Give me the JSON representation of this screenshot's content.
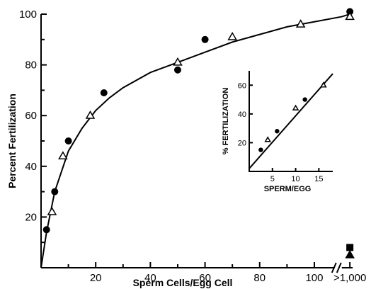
{
  "chart_data": [
    {
      "type": "scatter",
      "title": "",
      "xlabel": "Sperm Cells/Egg Cell",
      "ylabel": "Percent Fertilization",
      "x_ticks": [
        "20",
        "40",
        "60",
        "80",
        "100",
        ">1,000"
      ],
      "y_ticks": [
        "20",
        "40",
        "60",
        "80",
        "100"
      ],
      "xlim": [
        0,
        120
      ],
      "ylim": [
        0,
        100
      ],
      "axis_break": "between 100 and >1,000",
      "series": [
        {
          "marker": "filled-circle",
          "points": [
            [
              2,
              15
            ],
            [
              5,
              30
            ],
            [
              10,
              50
            ],
            [
              23,
              69
            ],
            [
              50,
              78
            ],
            [
              60,
              90
            ],
            [
              120,
              101
            ]
          ]
        },
        {
          "marker": "open-triangle",
          "points": [
            [
              4,
              22
            ],
            [
              8,
              44
            ],
            [
              18,
              60
            ],
            [
              50,
              81
            ],
            [
              70,
              91
            ],
            [
              95,
              96
            ],
            [
              120,
              99
            ]
          ]
        },
        {
          "marker": "filled-square",
          "points": [
            [
              120,
              8
            ]
          ]
        },
        {
          "marker": "filled-triangle",
          "points": [
            [
              120,
              5
            ]
          ]
        }
      ],
      "fit_curve": [
        [
          0,
          0
        ],
        [
          2,
          14
        ],
        [
          5,
          30
        ],
        [
          10,
          46
        ],
        [
          15,
          55
        ],
        [
          20,
          62
        ],
        [
          25,
          67
        ],
        [
          30,
          71
        ],
        [
          40,
          77
        ],
        [
          50,
          81
        ],
        [
          60,
          85
        ],
        [
          70,
          89
        ],
        [
          80,
          92
        ],
        [
          90,
          95
        ],
        [
          100,
          97
        ],
        [
          110,
          99
        ],
        [
          120,
          100
        ]
      ],
      "grid": false
    },
    {
      "type": "scatter",
      "title": "",
      "xlabel": "SPERM/EGG",
      "ylabel": "% FERTILIZATION",
      "x_ticks": [
        "5",
        "10",
        "15"
      ],
      "y_ticks": [
        "20",
        "40",
        "60"
      ],
      "xlim": [
        0,
        18
      ],
      "ylim": [
        0,
        70
      ],
      "series": [
        {
          "marker": "filled-circle",
          "points": [
            [
              2.5,
              15
            ],
            [
              6,
              28
            ],
            [
              12,
              50
            ]
          ]
        },
        {
          "marker": "open-triangle",
          "points": [
            [
              4,
              22
            ],
            [
              10,
              44
            ],
            [
              16,
              60
            ]
          ]
        }
      ],
      "fit_line": [
        [
          0,
          2
        ],
        [
          18,
          68
        ]
      ],
      "grid": false
    }
  ]
}
